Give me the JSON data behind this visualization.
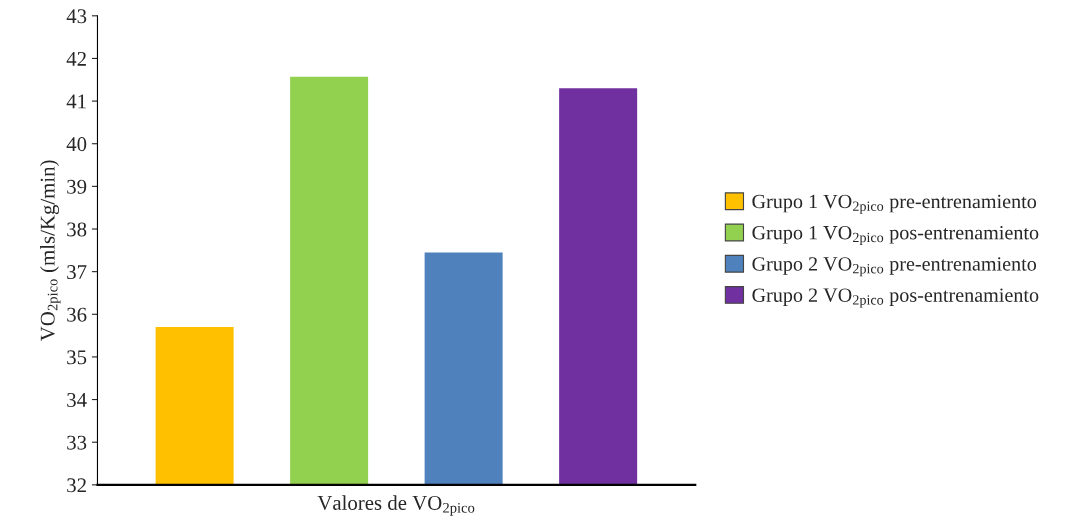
{
  "chart_data": {
    "type": "bar",
    "xlabel": "Valores de VO$_{2pico}$",
    "ylabel": "VO$_{2pico}$ (mls/Kg/min)",
    "categories": [
      null
    ],
    "series": [
      {
        "name": "Grupo 1 VO$_{2pico}$ pre-entrenamiento",
        "color": "#ffc000",
        "values": [
          35.7
        ]
      },
      {
        "name": "Grupo 1 VO$_{2pico}$ pos-entrenamiento",
        "color": "#92d050",
        "values": [
          41.57
        ]
      },
      {
        "name": "Grupo 2 VO$_{2pico}$ pre-entrenamiento",
        "color": "#4f81bd",
        "values": [
          37.45
        ]
      },
      {
        "name": "Grupo 2 VO$_{2pico}$ pos-entrenamiento",
        "color": "#7030a0",
        "values": [
          41.3
        ]
      }
    ],
    "ylim": [
      32,
      43
    ],
    "yticks": [
      32,
      33,
      34,
      35,
      36,
      37,
      38,
      39,
      40,
      41,
      42,
      43
    ],
    "grid": false,
    "legend": "right"
  }
}
